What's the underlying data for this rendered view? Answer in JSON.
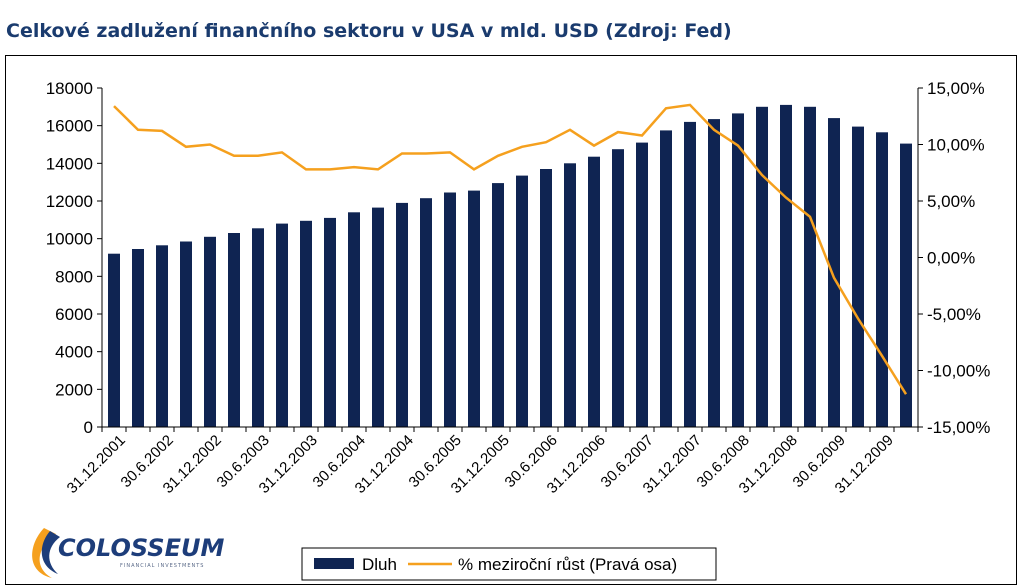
{
  "title": "Celkové zadlužení finančního sektoru v USA v mld. USD (Zdroj: Fed)",
  "logo": {
    "text": "COLOSSEUM",
    "subtext": "FINANCIAL INVESTMENTS"
  },
  "colors": {
    "bar": "#0f2452",
    "line": "#f5a01e",
    "title": "#1a3b6e"
  },
  "chart_data": {
    "type": "bar",
    "title": "Celkové zadlužení finančního sektoru v USA v mld. USD (Zdroj: Fed)",
    "x_tick_labels": [
      "31.12.2001",
      "30.6.2002",
      "31.12.2002",
      "30.6.2003",
      "31.12.2003",
      "30.6.2004",
      "31.12.2004",
      "30.6.2005",
      "31.12.2005",
      "30.6.2006",
      "31.12.2006",
      "30.6.2007",
      "31.12.2007",
      "30.6.2008",
      "31.12.2008",
      "30.6.2009",
      "31.12.2009"
    ],
    "left_axis": {
      "ylim": [
        0,
        18000
      ],
      "ticks": [
        "0",
        "2000",
        "4000",
        "6000",
        "8000",
        "10000",
        "12000",
        "14000",
        "16000",
        "18000"
      ]
    },
    "right_axis": {
      "ylim": [
        -15,
        15
      ],
      "ticks": [
        "-15,00%",
        "-10,00%",
        "-5,00%",
        "0,00%",
        "5,00%",
        "10,00%",
        "15,00%"
      ]
    },
    "grid": false,
    "legend_position": "bottom",
    "series": [
      {
        "name": "Dluh",
        "type": "bar",
        "axis": "left",
        "values": [
          9200,
          9450,
          9650,
          9850,
          10100,
          10300,
          10550,
          10800,
          10950,
          11100,
          11400,
          11650,
          11900,
          12150,
          12450,
          12550,
          12950,
          13350,
          13700,
          14000,
          14350,
          14750,
          15100,
          15750,
          16200,
          16350,
          16650,
          17000,
          17100,
          17000,
          16400,
          15950,
          15650,
          15050
        ]
      },
      {
        "name": "% meziroční růst (Pravá osa)",
        "type": "line",
        "axis": "right",
        "values": [
          13.4,
          11.3,
          11.2,
          9.8,
          10.0,
          9.0,
          9.0,
          9.3,
          7.8,
          7.8,
          8.0,
          7.8,
          9.2,
          9.2,
          9.3,
          7.8,
          9.0,
          9.8,
          10.2,
          11.3,
          9.9,
          11.1,
          10.8,
          13.2,
          13.5,
          11.3,
          9.9,
          7.3,
          5.3,
          3.6,
          -1.8,
          -5.4,
          -8.7,
          -12.1
        ]
      }
    ]
  }
}
